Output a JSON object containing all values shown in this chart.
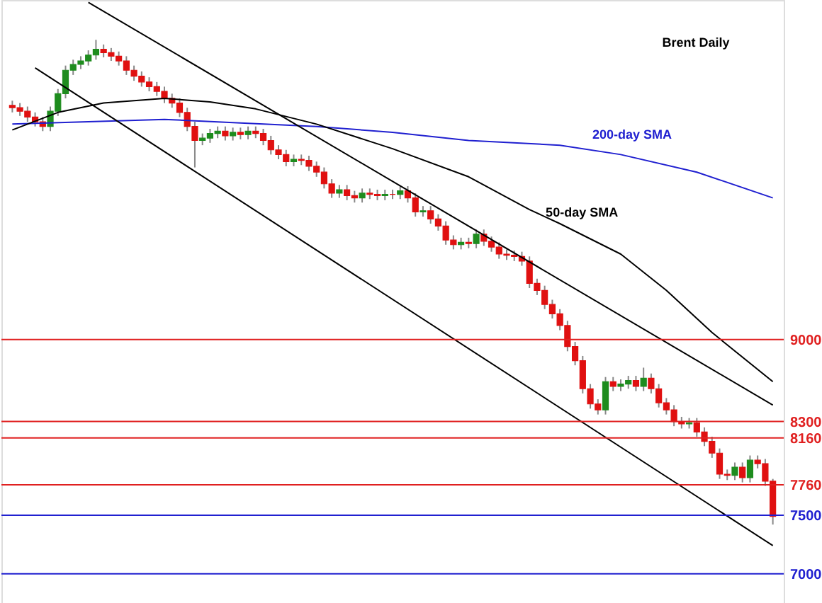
{
  "chart_data": {
    "type": "candlestick",
    "title": "Brent Daily",
    "tick_labels": "y",
    "grid": false,
    "ylim": [
      6750,
      11900
    ],
    "yticks": [
      7000,
      7500,
      7760,
      8160,
      8300,
      9000
    ],
    "categories": [
      null,
      null,
      null,
      null,
      null,
      null,
      null,
      null,
      null,
      null,
      null,
      null,
      null,
      null,
      null,
      null,
      null,
      null,
      null,
      null,
      null,
      null,
      null,
      null,
      null,
      null,
      null,
      null,
      null,
      null,
      null,
      null,
      null,
      null,
      null,
      null,
      null,
      null,
      null,
      null,
      null,
      null,
      null,
      null,
      null,
      null,
      null,
      null,
      null,
      null,
      null,
      null,
      null,
      null,
      null,
      null,
      null,
      null,
      null,
      null,
      null,
      null,
      null,
      null,
      null,
      null,
      null,
      null,
      null,
      null,
      null,
      null,
      null,
      null,
      null,
      null,
      null,
      null,
      null,
      null,
      null,
      null,
      null,
      null,
      null,
      null,
      null,
      null,
      null,
      null,
      null,
      null,
      null,
      null,
      null,
      null,
      null,
      null,
      null,
      null,
      null
    ],
    "colors": [
      "#e01010",
      "#e01010",
      "#e01010",
      "#e01010",
      "#e01010",
      "#1e8c1e",
      "#1e8c1e",
      "#1e8c1e",
      "#1e8c1e",
      "#1e8c1e",
      "#1e8c1e",
      "#1e8c1e",
      "#e01010",
      "#e01010",
      "#e01010",
      "#e01010",
      "#e01010",
      "#e01010",
      "#e01010",
      "#e01010",
      "#e01010",
      "#e01010",
      "#e01010",
      "#e01010",
      "#e01010",
      "#1e8c1e",
      "#1e8c1e",
      "#1e8c1e",
      "#e01010",
      "#1e8c1e",
      "#e01010",
      "#1e8c1e",
      "#e01010",
      "#e01010",
      "#e01010",
      "#e01010",
      "#e01010",
      "#1e8c1e",
      "#e01010",
      "#e01010",
      "#e01010",
      "#e01010",
      "#e01010",
      "#1e8c1e",
      "#e01010",
      "#e01010",
      "#1e8c1e",
      "#e01010",
      "#e01010",
      "#1e8c1e",
      "#e01010",
      "#1e8c1e",
      "#e01010",
      "#e01010",
      "#1e8c1e",
      "#e01010",
      "#e01010",
      "#e01010",
      "#e01010",
      "#1e8c1e",
      "#e01010",
      "#1e8c1e",
      "#e01010",
      "#e01010",
      "#e01010",
      "#e01010",
      "#e01010",
      "#e01010",
      "#e01010",
      "#e01010",
      "#e01010",
      "#e01010",
      "#e01010",
      "#e01010",
      "#e01010",
      "#e01010",
      "#e01010",
      "#e01010",
      "#1e8c1e",
      "#e01010",
      "#1e8c1e",
      "#1e8c1e",
      "#e01010",
      "#1e8c1e",
      "#e01010",
      "#e01010",
      "#e01010",
      "#e01010",
      "#e01010",
      "#1e8c1e",
      "#e01010",
      "#e01010",
      "#e01010",
      "#e01010",
      "#e01010",
      "#1e8c1e",
      "#e01010",
      "#1e8c1e",
      "#e01010",
      "#e01010",
      "#e01010"
    ],
    "ohlc": [
      [
        11000,
        11040,
        10940,
        10980
      ],
      [
        10980,
        11020,
        10910,
        10950
      ],
      [
        10950,
        10990,
        10860,
        10900
      ],
      [
        10900,
        10940,
        10820,
        10860
      ],
      [
        10860,
        10900,
        10780,
        10820
      ],
      [
        10820,
        10990,
        10780,
        10950
      ],
      [
        10950,
        11140,
        10910,
        11100
      ],
      [
        11100,
        11340,
        11060,
        11300
      ],
      [
        11300,
        11390,
        11260,
        11350
      ],
      [
        11350,
        11420,
        11310,
        11380
      ],
      [
        11380,
        11470,
        11340,
        11430
      ],
      [
        11430,
        11560,
        11390,
        11480
      ],
      [
        11480,
        11520,
        11410,
        11450
      ],
      [
        11450,
        11490,
        11380,
        11420
      ],
      [
        11420,
        11460,
        11340,
        11380
      ],
      [
        11380,
        11420,
        11260,
        11300
      ],
      [
        11300,
        11340,
        11210,
        11250
      ],
      [
        11250,
        11290,
        11160,
        11200
      ],
      [
        11200,
        11240,
        11120,
        11160
      ],
      [
        11160,
        11200,
        11080,
        11120
      ],
      [
        11120,
        11160,
        11020,
        11060
      ],
      [
        11060,
        11100,
        10980,
        11020
      ],
      [
        11020,
        11060,
        10900,
        10940
      ],
      [
        10940,
        10980,
        10780,
        10820
      ],
      [
        10820,
        10860,
        10470,
        10700
      ],
      [
        10700,
        10760,
        10660,
        10720
      ],
      [
        10720,
        10800,
        10680,
        10760
      ],
      [
        10760,
        10820,
        10720,
        10780
      ],
      [
        10780,
        10820,
        10700,
        10740
      ],
      [
        10740,
        10810,
        10700,
        10770
      ],
      [
        10770,
        10810,
        10710,
        10750
      ],
      [
        10750,
        10820,
        10710,
        10780
      ],
      [
        10780,
        10820,
        10720,
        10760
      ],
      [
        10760,
        10800,
        10660,
        10700
      ],
      [
        10700,
        10740,
        10580,
        10620
      ],
      [
        10620,
        10660,
        10540,
        10580
      ],
      [
        10580,
        10620,
        10480,
        10520
      ],
      [
        10520,
        10580,
        10480,
        10540
      ],
      [
        10540,
        10580,
        10490,
        10530
      ],
      [
        10530,
        10570,
        10440,
        10480
      ],
      [
        10480,
        10520,
        10390,
        10430
      ],
      [
        10430,
        10470,
        10290,
        10330
      ],
      [
        10330,
        10370,
        10210,
        10250
      ],
      [
        10250,
        10320,
        10210,
        10280
      ],
      [
        10280,
        10320,
        10190,
        10230
      ],
      [
        10230,
        10270,
        10170,
        10210
      ],
      [
        10210,
        10290,
        10170,
        10250
      ],
      [
        10250,
        10290,
        10200,
        10240
      ],
      [
        10240,
        10280,
        10190,
        10230
      ],
      [
        10230,
        10280,
        10190,
        10240
      ],
      [
        10240,
        10280,
        10200,
        10240
      ],
      [
        10240,
        10310,
        10200,
        10270
      ],
      [
        10270,
        10310,
        10170,
        10210
      ],
      [
        10210,
        10250,
        10050,
        10090
      ],
      [
        10090,
        10140,
        10050,
        10100
      ],
      [
        10100,
        10140,
        9990,
        10030
      ],
      [
        10030,
        10070,
        9930,
        9970
      ],
      [
        9970,
        10010,
        9810,
        9850
      ],
      [
        9850,
        9890,
        9770,
        9810
      ],
      [
        9810,
        9870,
        9770,
        9830
      ],
      [
        9830,
        9870,
        9780,
        9820
      ],
      [
        9820,
        9940,
        9780,
        9900
      ],
      [
        9900,
        9940,
        9800,
        9840
      ],
      [
        9840,
        9880,
        9750,
        9790
      ],
      [
        9790,
        9830,
        9690,
        9730
      ],
      [
        9730,
        9770,
        9680,
        9720
      ],
      [
        9720,
        9760,
        9670,
        9710
      ],
      [
        9710,
        9750,
        9630,
        9670
      ],
      [
        9670,
        9710,
        9440,
        9480
      ],
      [
        9480,
        9520,
        9380,
        9420
      ],
      [
        9420,
        9460,
        9260,
        9300
      ],
      [
        9300,
        9340,
        9180,
        9220
      ],
      [
        9220,
        9260,
        9080,
        9120
      ],
      [
        9120,
        9160,
        8900,
        8940
      ],
      [
        8940,
        8980,
        8780,
        8820
      ],
      [
        8820,
        8860,
        8540,
        8580
      ],
      [
        8580,
        8620,
        8410,
        8450
      ],
      [
        8450,
        8490,
        8360,
        8400
      ],
      [
        8400,
        8680,
        8360,
        8640
      ],
      [
        8640,
        8680,
        8560,
        8600
      ],
      [
        8600,
        8660,
        8560,
        8620
      ],
      [
        8620,
        8690,
        8580,
        8650
      ],
      [
        8650,
        8690,
        8560,
        8600
      ],
      [
        8600,
        8760,
        8560,
        8670
      ],
      [
        8670,
        8710,
        8540,
        8580
      ],
      [
        8580,
        8620,
        8420,
        8460
      ],
      [
        8460,
        8500,
        8360,
        8400
      ],
      [
        8400,
        8440,
        8260,
        8300
      ],
      [
        8300,
        8340,
        8240,
        8280
      ],
      [
        8280,
        8330,
        8240,
        8290
      ],
      [
        8290,
        8330,
        8170,
        8210
      ],
      [
        8210,
        8250,
        8090,
        8130
      ],
      [
        8130,
        8170,
        7990,
        8030
      ],
      [
        8030,
        8070,
        7810,
        7850
      ],
      [
        7850,
        7890,
        7800,
        7840
      ],
      [
        7840,
        7950,
        7800,
        7910
      ],
      [
        7910,
        7950,
        7780,
        7820
      ],
      [
        7820,
        8010,
        7780,
        7970
      ],
      [
        7970,
        8010,
        7900,
        7940
      ],
      [
        7940,
        7980,
        7750,
        7790
      ],
      [
        7790,
        7810,
        7420,
        7490
      ]
    ],
    "series": [
      {
        "name": "200-day SMA",
        "type": "line",
        "color": "#2020d0",
        "values": [
          10840,
          null,
          null,
          null,
          null,
          null,
          null,
          null,
          null,
          null,
          null,
          null,
          null,
          null,
          null,
          null,
          null,
          null,
          null,
          null,
          10880,
          null,
          null,
          null,
          null,
          null,
          null,
          null,
          null,
          null,
          null,
          null,
          null,
          null,
          null,
          null,
          null,
          null,
          null,
          null,
          10820,
          null,
          null,
          null,
          null,
          null,
          null,
          null,
          null,
          null,
          10770,
          null,
          null,
          null,
          null,
          null,
          null,
          null,
          null,
          null,
          10700,
          null,
          null,
          null,
          null,
          null,
          null,
          null,
          null,
          null,
          null,
          null,
          10660,
          null,
          null,
          null,
          null,
          null,
          null,
          null,
          10580,
          null,
          null,
          null,
          null,
          null,
          null,
          null,
          null,
          null,
          10430,
          null,
          null,
          null,
          null,
          null,
          null,
          null,
          null,
          null,
          10210
        ]
      },
      {
        "name": "50-day SMA",
        "type": "line",
        "color": "#000000",
        "values": [
          10790,
          null,
          null,
          null,
          null,
          null,
          10940,
          null,
          null,
          null,
          null,
          null,
          11020,
          null,
          null,
          null,
          null,
          null,
          null,
          null,
          11060,
          null,
          null,
          null,
          null,
          null,
          11030,
          null,
          null,
          null,
          null,
          null,
          10970,
          null,
          null,
          null,
          null,
          null,
          null,
          null,
          10840,
          null,
          null,
          null,
          null,
          null,
          null,
          null,
          null,
          null,
          10630,
          null,
          null,
          null,
          null,
          null,
          null,
          null,
          null,
          null,
          10390,
          null,
          null,
          null,
          null,
          null,
          null,
          null,
          10110,
          null,
          null,
          null,
          9990,
          null,
          null,
          null,
          null,
          null,
          null,
          null,
          9730,
          null,
          null,
          null,
          null,
          null,
          9420,
          null,
          null,
          null,
          null,
          null,
          9060,
          null,
          null,
          null,
          null,
          null,
          null,
          null,
          8640
        ]
      },
      {
        "type": "line",
        "color": "#000000",
        "values": [
          null,
          null,
          null,
          null,
          null,
          null,
          null,
          null,
          null,
          null,
          11880,
          null,
          null,
          null,
          null,
          null,
          null,
          null,
          null,
          null,
          null,
          null,
          null,
          null,
          null,
          null,
          null,
          null,
          null,
          null,
          null,
          null,
          null,
          null,
          null,
          null,
          null,
          null,
          null,
          null,
          null,
          null,
          null,
          null,
          null,
          null,
          null,
          null,
          null,
          null,
          null,
          null,
          null,
          null,
          null,
          null,
          null,
          null,
          null,
          null,
          null,
          null,
          null,
          null,
          null,
          null,
          null,
          null,
          null,
          null,
          null,
          null,
          null,
          null,
          null,
          null,
          null,
          null,
          null,
          null,
          null,
          null,
          null,
          null,
          null,
          null,
          null,
          null,
          null,
          null,
          null,
          null,
          null,
          null,
          null,
          null,
          null,
          null,
          null,
          null,
          8440
        ]
      },
      {
        "type": "line",
        "color": "#000000",
        "values": [
          null,
          null,
          null,
          11320,
          null,
          null,
          null,
          null,
          null,
          null,
          null,
          null,
          null,
          null,
          null,
          null,
          null,
          null,
          null,
          null,
          null,
          null,
          null,
          null,
          null,
          null,
          null,
          null,
          null,
          null,
          null,
          null,
          null,
          null,
          null,
          null,
          null,
          null,
          null,
          null,
          null,
          null,
          null,
          null,
          null,
          null,
          null,
          null,
          null,
          null,
          null,
          null,
          null,
          null,
          null,
          null,
          null,
          null,
          null,
          null,
          null,
          null,
          null,
          null,
          null,
          null,
          null,
          null,
          null,
          null,
          null,
          null,
          null,
          null,
          null,
          null,
          null,
          null,
          null,
          null,
          null,
          null,
          null,
          null,
          null,
          null,
          null,
          null,
          null,
          null,
          null,
          null,
          null,
          null,
          null,
          null,
          null,
          null,
          null,
          null,
          7240
        ]
      }
    ],
    "ref_lines": [
      {
        "axis": "y",
        "value": 9000,
        "color": "#e02020"
      },
      {
        "axis": "y",
        "value": 8300,
        "color": "#e02020"
      },
      {
        "axis": "y",
        "value": 8160,
        "color": "#e02020"
      },
      {
        "axis": "y",
        "value": 7760,
        "color": "#e02020"
      },
      {
        "axis": "y",
        "value": 7500,
        "color": "#2020d0"
      },
      {
        "axis": "y",
        "value": 7000,
        "color": "#2020d0"
      }
    ]
  }
}
